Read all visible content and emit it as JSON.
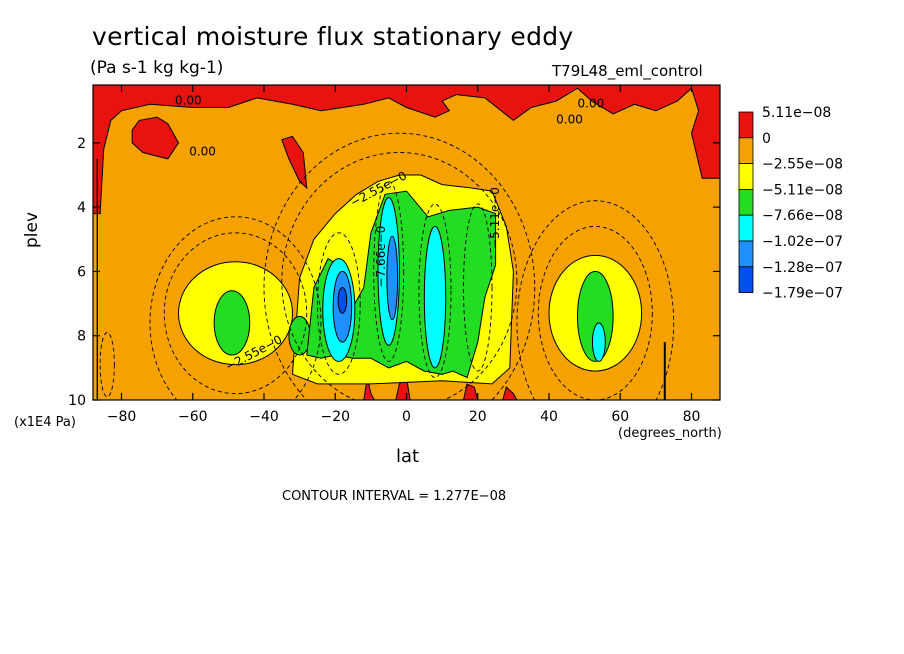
{
  "chart_data": {
    "type": "heatmap",
    "title": "vertical moisture flux stationary eddy",
    "subtitle": "(Pa s-1 kg kg-1)",
    "run_label": "T79L48_eml_control",
    "xlabel": "lat",
    "x_unit": "(degrees_north)",
    "ylabel": "plev",
    "y_unit": "(x1E4 Pa)",
    "xlim": [
      -88,
      88
    ],
    "ylim": [
      10,
      0.2
    ],
    "x_ticks": [
      -80,
      -60,
      -40,
      -20,
      0,
      20,
      40,
      60,
      80
    ],
    "x_tick_labels": [
      "−80",
      "−60",
      "−40",
      "−20",
      "0",
      "20",
      "40",
      "60",
      "80"
    ],
    "y_ticks": [
      2,
      4,
      6,
      8,
      10
    ],
    "y_tick_labels": [
      "2",
      "4",
      "6",
      "8",
      "10"
    ],
    "legend": {
      "placement": "right",
      "levels": [
        {
          "label": "5.11e−08",
          "color": "#e8130f"
        },
        {
          "label": "0",
          "color": "#f5a100"
        },
        {
          "label": "−2.55e−08",
          "color": "#ffff00"
        },
        {
          "label": "−5.11e−08",
          "color": "#22dd22"
        },
        {
          "label": "−7.66e−08",
          "color": "#00ffff"
        },
        {
          "label": "−1.02e−07",
          "color": "#1e90ff"
        },
        {
          "label": "−1.28e−07",
          "color": "#0050ee"
        },
        {
          "label": "−1.79e−07",
          "color": ""
        }
      ]
    },
    "contour_labels": [
      {
        "text": "0.00",
        "lat": -65,
        "plev": 0.8
      },
      {
        "text": "0.00",
        "lat": -61,
        "plev": 2.4
      },
      {
        "text": "0.00",
        "lat": 42,
        "plev": 1.4
      },
      {
        "text": "0.00",
        "lat": 48,
        "plev": 0.9
      },
      {
        "text": "−2.55e−0",
        "lat": -15,
        "plev": 4.0
      },
      {
        "text": "−2.55e−0",
        "lat": -50,
        "plev": 9.1
      },
      {
        "text": "−5.11e−0",
        "lat": 26,
        "plev": 5.3
      },
      {
        "text": "−7.66e−0",
        "lat": -6,
        "plev": 6.5
      }
    ],
    "regions": [
      {
        "value_class": 1,
        "shape": "poly",
        "pts": [
          [
            -88,
            0.2
          ],
          [
            -88,
            4.2
          ],
          [
            -86,
            4.2
          ],
          [
            -85,
            2.2
          ],
          [
            -83,
            1.3
          ],
          [
            -80,
            1.0
          ],
          [
            -72,
            0.8
          ],
          [
            -60,
            0.9
          ],
          [
            -50,
            0.9
          ],
          [
            -42,
            0.6
          ],
          [
            -32,
            0.8
          ],
          [
            -24,
            1.0
          ],
          [
            -12,
            0.8
          ],
          [
            -5,
            0.6
          ],
          [
            0,
            0.9
          ],
          [
            8,
            1.2
          ],
          [
            12,
            1.0
          ],
          [
            10,
            0.7
          ],
          [
            14,
            0.5
          ],
          [
            22,
            0.6
          ],
          [
            30,
            1.3
          ],
          [
            35,
            0.9
          ],
          [
            42,
            0.7
          ],
          [
            48,
            0.3
          ],
          [
            52,
            0.7
          ],
          [
            58,
            1.1
          ],
          [
            64,
            0.8
          ],
          [
            70,
            1.0
          ],
          [
            76,
            0.7
          ],
          [
            80,
            0.3
          ],
          [
            82,
            1.0
          ],
          [
            80,
            1.7
          ],
          [
            83,
            3.1
          ],
          [
            88,
            3.1
          ],
          [
            88,
            0.2
          ]
        ]
      },
      {
        "value_class": 1,
        "shape": "poly",
        "pts": [
          [
            -77,
            1.6
          ],
          [
            -75,
            1.3
          ],
          [
            -70,
            1.2
          ],
          [
            -67,
            1.4
          ],
          [
            -64,
            2.0
          ],
          [
            -67,
            2.5
          ],
          [
            -74,
            2.3
          ],
          [
            -77,
            2.0
          ]
        ]
      },
      {
        "value_class": 1,
        "shape": "poly",
        "pts": [
          [
            -35,
            1.9
          ],
          [
            -32,
            1.8
          ],
          [
            -29,
            2.3
          ],
          [
            -28,
            3.4
          ],
          [
            -30,
            3.2
          ],
          [
            -33,
            2.5
          ]
        ]
      },
      {
        "value_class": 1,
        "shape": "poly",
        "pts": [
          [
            -12,
            10
          ],
          [
            -11,
            9.3
          ],
          [
            -10,
            9.8
          ],
          [
            -9,
            10
          ]
        ]
      },
      {
        "value_class": 1,
        "shape": "poly",
        "pts": [
          [
            -3,
            10
          ],
          [
            -2,
            9.5
          ],
          [
            0,
            9.3
          ],
          [
            1,
            10
          ]
        ]
      },
      {
        "value_class": 1,
        "shape": "poly",
        "pts": [
          [
            16,
            10
          ],
          [
            17,
            9.5
          ],
          [
            19,
            9.6
          ],
          [
            20,
            10
          ]
        ]
      },
      {
        "value_class": 1,
        "shape": "poly",
        "pts": [
          [
            27,
            10
          ],
          [
            28,
            9.6
          ],
          [
            30,
            9.8
          ],
          [
            31,
            10
          ]
        ]
      },
      {
        "value_class": 2,
        "shape": "ell",
        "lat": -48,
        "plev": 7.3,
        "rx": 16,
        "ry": 1.6
      },
      {
        "value_class": 2,
        "shape": "ell",
        "lat": 53,
        "plev": 7.3,
        "rx": 13,
        "ry": 1.8
      },
      {
        "value_class": 2,
        "shape": "poly",
        "pts": [
          [
            -32,
            9.2
          ],
          [
            -30,
            6.2
          ],
          [
            -26,
            5.0
          ],
          [
            -20,
            4.2
          ],
          [
            -14,
            3.6
          ],
          [
            -8,
            3.2
          ],
          [
            -2,
            3.0
          ],
          [
            4,
            3.0
          ],
          [
            10,
            3.3
          ],
          [
            18,
            3.4
          ],
          [
            24,
            3.5
          ],
          [
            28,
            4.6
          ],
          [
            30,
            6.0
          ],
          [
            29,
            9.0
          ],
          [
            24,
            9.5
          ],
          [
            10,
            9.4
          ],
          [
            -10,
            9.5
          ],
          [
            -25,
            9.5
          ]
        ]
      },
      {
        "value_class": 3,
        "shape": "ell",
        "lat": -49,
        "plev": 7.6,
        "rx": 5,
        "ry": 1.0
      },
      {
        "value_class": 3,
        "shape": "ell",
        "lat": 53,
        "plev": 7.4,
        "rx": 5,
        "ry": 1.4
      },
      {
        "value_class": 3,
        "shape": "ell",
        "lat": -30,
        "plev": 8.0,
        "rx": 3,
        "ry": 0.6
      },
      {
        "value_class": 3,
        "shape": "poly",
        "pts": [
          [
            -28,
            8.6
          ],
          [
            -26,
            6.5
          ],
          [
            -22,
            5.6
          ],
          [
            -18,
            5.9
          ],
          [
            -15,
            7.1
          ],
          [
            -12,
            6.5
          ],
          [
            -10,
            4.8
          ],
          [
            -6,
            3.6
          ],
          [
            0,
            3.5
          ],
          [
            6,
            4.3
          ],
          [
            12,
            4.1
          ],
          [
            20,
            4.0
          ],
          [
            25,
            4.2
          ],
          [
            25,
            5.8
          ],
          [
            22,
            6.8
          ],
          [
            20,
            8.2
          ],
          [
            17,
            9.3
          ],
          [
            13,
            9.1
          ],
          [
            10,
            9.2
          ],
          [
            5,
            9.1
          ],
          [
            0,
            8.8
          ],
          [
            -5,
            9.0
          ],
          [
            -10,
            8.7
          ],
          [
            -15,
            8.7
          ],
          [
            -20,
            8.6
          ],
          [
            -24,
            8.7
          ]
        ]
      },
      {
        "value_class": 4,
        "shape": "ell",
        "lat": -19,
        "plev": 7.2,
        "rx": 4.5,
        "ry": 1.6
      },
      {
        "value_class": 4,
        "shape": "ell",
        "lat": -5,
        "plev": 6.0,
        "rx": 3,
        "ry": 2.3
      },
      {
        "value_class": 4,
        "shape": "ell",
        "lat": 8,
        "plev": 6.8,
        "rx": 3,
        "ry": 2.2
      },
      {
        "value_class": 4,
        "shape": "ell",
        "lat": 54,
        "plev": 8.2,
        "rx": 1.8,
        "ry": 0.6
      },
      {
        "value_class": 5,
        "shape": "ell",
        "lat": -18,
        "plev": 7.1,
        "rx": 2.6,
        "ry": 1.1
      },
      {
        "value_class": 5,
        "shape": "ell",
        "lat": -4,
        "plev": 6.2,
        "rx": 1.5,
        "ry": 1.3
      },
      {
        "value_class": 6,
        "shape": "ell",
        "lat": -18,
        "plev": 6.9,
        "rx": 1.2,
        "ry": 0.4
      }
    ],
    "contour_lines": [
      {
        "kind": "dashed",
        "lat": -48,
        "plev": 7.3,
        "rx": 20,
        "ry": 2.5
      },
      {
        "kind": "dashed",
        "lat": -48,
        "plev": 7.6,
        "rx": 24,
        "ry": 3.3
      },
      {
        "kind": "dashed",
        "lat": 53,
        "plev": 7.3,
        "rx": 16,
        "ry": 2.7
      },
      {
        "kind": "dashed",
        "lat": 53,
        "plev": 7.6,
        "rx": 22,
        "ry": 3.8
      },
      {
        "kind": "dashed",
        "lat": -84,
        "plev": 8.9,
        "rx": 2,
        "ry": 1.0
      },
      {
        "kind": "dashed",
        "lat": -2,
        "plev": 6.3,
        "rx": 33,
        "ry": 4.0
      },
      {
        "kind": "dashed",
        "lat": -2,
        "plev": 6.5,
        "rx": 38,
        "ry": 4.8
      },
      {
        "kind": "dashed",
        "lat": -19,
        "plev": 7.0,
        "rx": 6,
        "ry": 2.2
      },
      {
        "kind": "dashed",
        "lat": 8,
        "plev": 6.6,
        "rx": 4.5,
        "ry": 2.7
      },
      {
        "kind": "dashed",
        "lat": -5,
        "plev": 6.0,
        "rx": 4.2,
        "ry": 2.8
      },
      {
        "kind": "dashed",
        "lat": 20,
        "plev": 6.5,
        "rx": 4,
        "ry": 2.6
      }
    ]
  }
}
